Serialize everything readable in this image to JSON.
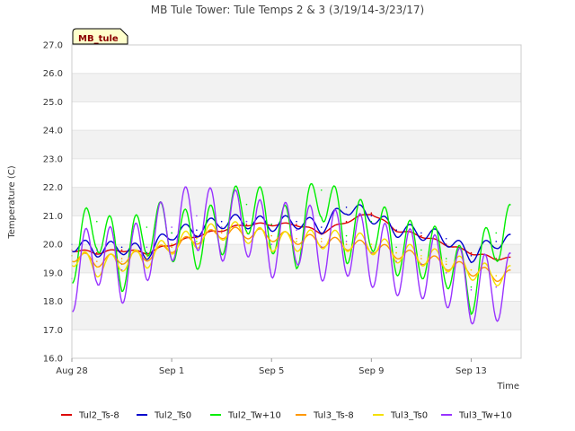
{
  "chart_data": {
    "type": "line",
    "title": "MB Tule Tower: Tule Temps 2 & 3 (3/19/14-3/23/17)",
    "xlabel": "Time",
    "ylabel": "Temperature (C)",
    "badge": "MB_tule",
    "ylim": [
      16.0,
      27.0
    ],
    "y_ticks": [
      "16.0",
      "17.0",
      "18.0",
      "19.0",
      "20.0",
      "21.0",
      "22.0",
      "23.0",
      "24.0",
      "25.0",
      "26.0",
      "27.0"
    ],
    "xlim": [
      "2016-08-28",
      "2016-09-15"
    ],
    "x_ticks": [
      {
        "value": "2016-08-28",
        "label": "Aug 28"
      },
      {
        "value": "2016-09-01",
        "label": "Sep 1"
      },
      {
        "value": "2016-09-05",
        "label": "Sep 5"
      },
      {
        "value": "2016-09-09",
        "label": "Sep 9"
      },
      {
        "value": "2016-09-13",
        "label": "Sep 13"
      }
    ],
    "grid": true,
    "legend_position": "bottom",
    "x": [
      "2016-08-28",
      "2016-08-29",
      "2016-08-30",
      "2016-08-31",
      "2016-09-01",
      "2016-09-02",
      "2016-09-03",
      "2016-09-04",
      "2016-09-05",
      "2016-09-06",
      "2016-09-07",
      "2016-09-08",
      "2016-09-09",
      "2016-09-10",
      "2016-09-11",
      "2016-09-12",
      "2016-09-13",
      "2016-09-14"
    ],
    "series": [
      {
        "name": "Tul2_Ts-8",
        "color": "#dd0000",
        "values": [
          19.8,
          19.7,
          19.8,
          19.7,
          20.0,
          20.3,
          20.5,
          20.7,
          20.7,
          20.7,
          20.4,
          20.8,
          21.1,
          20.5,
          20.3,
          20.0,
          19.7,
          19.5
        ]
      },
      {
        "name": "Tul2_Ts0",
        "color": "#0000cc",
        "values": [
          20.0,
          19.8,
          19.9,
          19.7,
          20.4,
          20.5,
          20.8,
          20.8,
          20.7,
          20.8,
          20.6,
          21.3,
          21.0,
          20.5,
          20.4,
          20.2,
          19.6,
          20.1
        ]
      },
      {
        "name": "Tul2_Tw+10",
        "color": "#00ee00",
        "values": [
          19.6,
          20.8,
          19.3,
          20.6,
          20.4,
          20.1,
          20.6,
          21.4,
          20.7,
          20.1,
          21.9,
          20.3,
          20.8,
          19.9,
          19.8,
          19.5,
          18.5,
          20.4
        ]
      },
      {
        "name": "Tul3_Ts-8",
        "color": "#ff9900",
        "values": [
          19.6,
          19.4,
          19.5,
          19.6,
          19.9,
          20.2,
          20.4,
          20.4,
          20.3,
          20.2,
          20.1,
          20.0,
          19.9,
          19.7,
          19.5,
          19.3,
          19.1,
          18.9
        ]
      },
      {
        "name": "Tul3_Ts0",
        "color": "#f5e000",
        "values": [
          19.6,
          19.2,
          19.4,
          19.5,
          20.0,
          20.2,
          20.5,
          20.4,
          20.1,
          20.1,
          20.2,
          20.1,
          20.0,
          19.7,
          19.6,
          19.4,
          19.1,
          18.9
        ]
      },
      {
        "name": "Tul3_Tw+10",
        "color": "#9933ff",
        "values": [
          18.8,
          19.8,
          19.1,
          19.9,
          20.6,
          21.0,
          20.6,
          20.8,
          20.0,
          20.5,
          19.9,
          20.1,
          19.7,
          19.4,
          19.3,
          19.0,
          18.4,
          18.5
        ]
      }
    ]
  }
}
